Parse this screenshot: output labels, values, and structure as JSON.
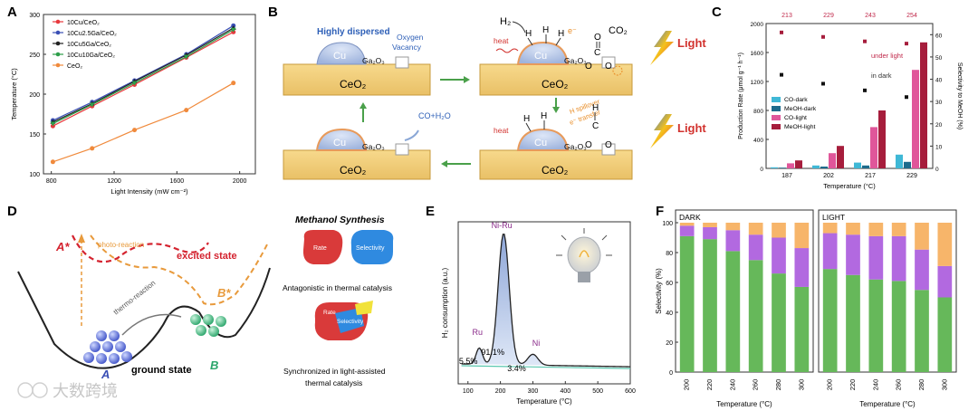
{
  "panels": {
    "A": "A",
    "B": "B",
    "C": "C",
    "D": "D",
    "E": "E",
    "F": "F"
  },
  "panel_b": {
    "highly_dispersed": "Highly dispersed",
    "oxygen": "Oxygen",
    "vacancy": "Vacancy",
    "cu": "Cu",
    "ga2o3": "Ga₂O₃",
    "ceo2": "CeO₂",
    "h2": "H₂",
    "co2": "CO₂",
    "heat": "heat",
    "eminus": "e⁻",
    "light": "Light",
    "co_h2o": "CO+H₂O",
    "h_spillover": "H spillover",
    "e_transfer": "e⁻ transfer",
    "H": "H",
    "C": "C",
    "O": "O"
  },
  "panel_d": {
    "a_star": "A*",
    "b_star": "B*",
    "photo_reaction": "photo-reaction",
    "thermo_reaction": "thermo-reaction",
    "excited_state": "excited state",
    "ground_state": "ground state",
    "a": "A",
    "b": "B",
    "methanol_title": "Methanol Synthesis",
    "rate": "Rate",
    "selectivity": "Selectivity",
    "antagonistic": "Antagonistic in thermal catalysis",
    "synchronized_1": "Synchronized in light-assisted",
    "synchronized_2": "thermal catalysis"
  },
  "watermark": "大数跨境",
  "chart_data": [
    {
      "panel": "A",
      "type": "line",
      "xlabel": "Light Intensity (mW cm⁻²)",
      "ylabel": "Temperature (°C)",
      "xlim": [
        750,
        2100
      ],
      "ylim": [
        100,
        300
      ],
      "xticks": [
        800,
        1200,
        1600,
        2000
      ],
      "yticks": [
        100,
        150,
        200,
        250,
        300
      ],
      "x": [
        810,
        1060,
        1330,
        1660,
        1960
      ],
      "series": [
        {
          "name": "10Cu/CeO₂",
          "color": "#e8383d",
          "marker": "circle",
          "values": [
            160,
            185,
            212,
            246,
            278
          ]
        },
        {
          "name": "10Cu2.5Ga/CeO₂",
          "color": "#3a4fb5",
          "marker": "circle",
          "values": [
            167,
            190,
            217,
            250,
            286
          ]
        },
        {
          "name": "10Cu5Ga/CeO₂",
          "color": "#222222",
          "marker": "triangle",
          "values": [
            165,
            188,
            216,
            249,
            283
          ]
        },
        {
          "name": "10Cu10Ga/CeO₂",
          "color": "#2e9e4a",
          "marker": "triangle-down",
          "values": [
            163,
            187,
            214,
            247,
            281
          ]
        },
        {
          "name": "CeO₂",
          "color": "#f08a3c",
          "marker": "circle",
          "values": [
            115,
            132,
            155,
            180,
            214
          ]
        }
      ]
    },
    {
      "panel": "C",
      "type": "bar",
      "xlabel": "Temperature (°C)",
      "ylabel": "Production Rate (μmol g⁻¹ h⁻¹)",
      "y2label": "Selectivity to MeOH (%)",
      "categories": [
        "187",
        "202",
        "217",
        "229"
      ],
      "top_labels": [
        "213",
        "229",
        "243",
        "254"
      ],
      "ylim": [
        0,
        2000
      ],
      "yticks": [
        0,
        400,
        800,
        1200,
        1600,
        2000
      ],
      "y2lim": [
        0,
        65
      ],
      "y2ticks": [
        0,
        10,
        20,
        30,
        40,
        50,
        60
      ],
      "series": [
        {
          "name": "CO-dark",
          "color": "#3fb8d6",
          "values": [
            15,
            40,
            80,
            190
          ]
        },
        {
          "name": "MeOH-dark",
          "color": "#1d6b8c",
          "values": [
            10,
            25,
            40,
            90
          ]
        },
        {
          "name": "CO-light",
          "color": "#e0569a",
          "values": [
            70,
            210,
            570,
            1360
          ]
        },
        {
          "name": "MeOH-light",
          "color": "#a61d3c",
          "values": [
            110,
            310,
            800,
            1740
          ]
        }
      ],
      "selectivity_light": [
        61,
        59,
        57,
        56
      ],
      "selectivity_dark": [
        42,
        38,
        35,
        32
      ],
      "annotation_light": "under light",
      "annotation_dark": "in dark"
    },
    {
      "panel": "E",
      "type": "area",
      "xlabel": "Temperature (°C)",
      "ylabel": "H₂ consumption (a.u.)",
      "xlim": [
        70,
        600
      ],
      "xticks": [
        100,
        200,
        300,
        400,
        500,
        600
      ],
      "peaks": [
        {
          "label": "Ru",
          "center": 135,
          "share": "5.5%"
        },
        {
          "label": "Ni-Ru",
          "center": 210,
          "share": "91.1%"
        },
        {
          "label": "Ni",
          "center": 300,
          "share": "3.4%"
        }
      ]
    },
    {
      "panel": "F",
      "type": "bar",
      "ylabel": "Selectivity (%)",
      "xlabel": "Temperature (°C)",
      "ylim": [
        0,
        100
      ],
      "yticks": [
        0,
        20,
        40,
        60,
        80,
        100
      ],
      "categories": [
        "200",
        "220",
        "240",
        "260",
        "280",
        "300"
      ],
      "groups": [
        {
          "name": "DARK",
          "series": [
            {
              "color": "#66b85a",
              "values": [
                91,
                89,
                81,
                75,
                66,
                57
              ]
            },
            {
              "color": "#b269e0",
              "values": [
                7,
                8,
                14,
                17,
                24,
                26
              ]
            },
            {
              "color": "#f7b56a",
              "values": [
                2,
                3,
                5,
                8,
                10,
                17
              ]
            }
          ]
        },
        {
          "name": "LIGHT",
          "series": [
            {
              "color": "#66b85a",
              "values": [
                69,
                65,
                62,
                61,
                55,
                50
              ]
            },
            {
              "color": "#b269e0",
              "values": [
                24,
                27,
                29,
                30,
                27,
                21
              ]
            },
            {
              "color": "#f7b56a",
              "values": [
                7,
                8,
                9,
                9,
                18,
                29
              ]
            }
          ]
        }
      ]
    }
  ]
}
